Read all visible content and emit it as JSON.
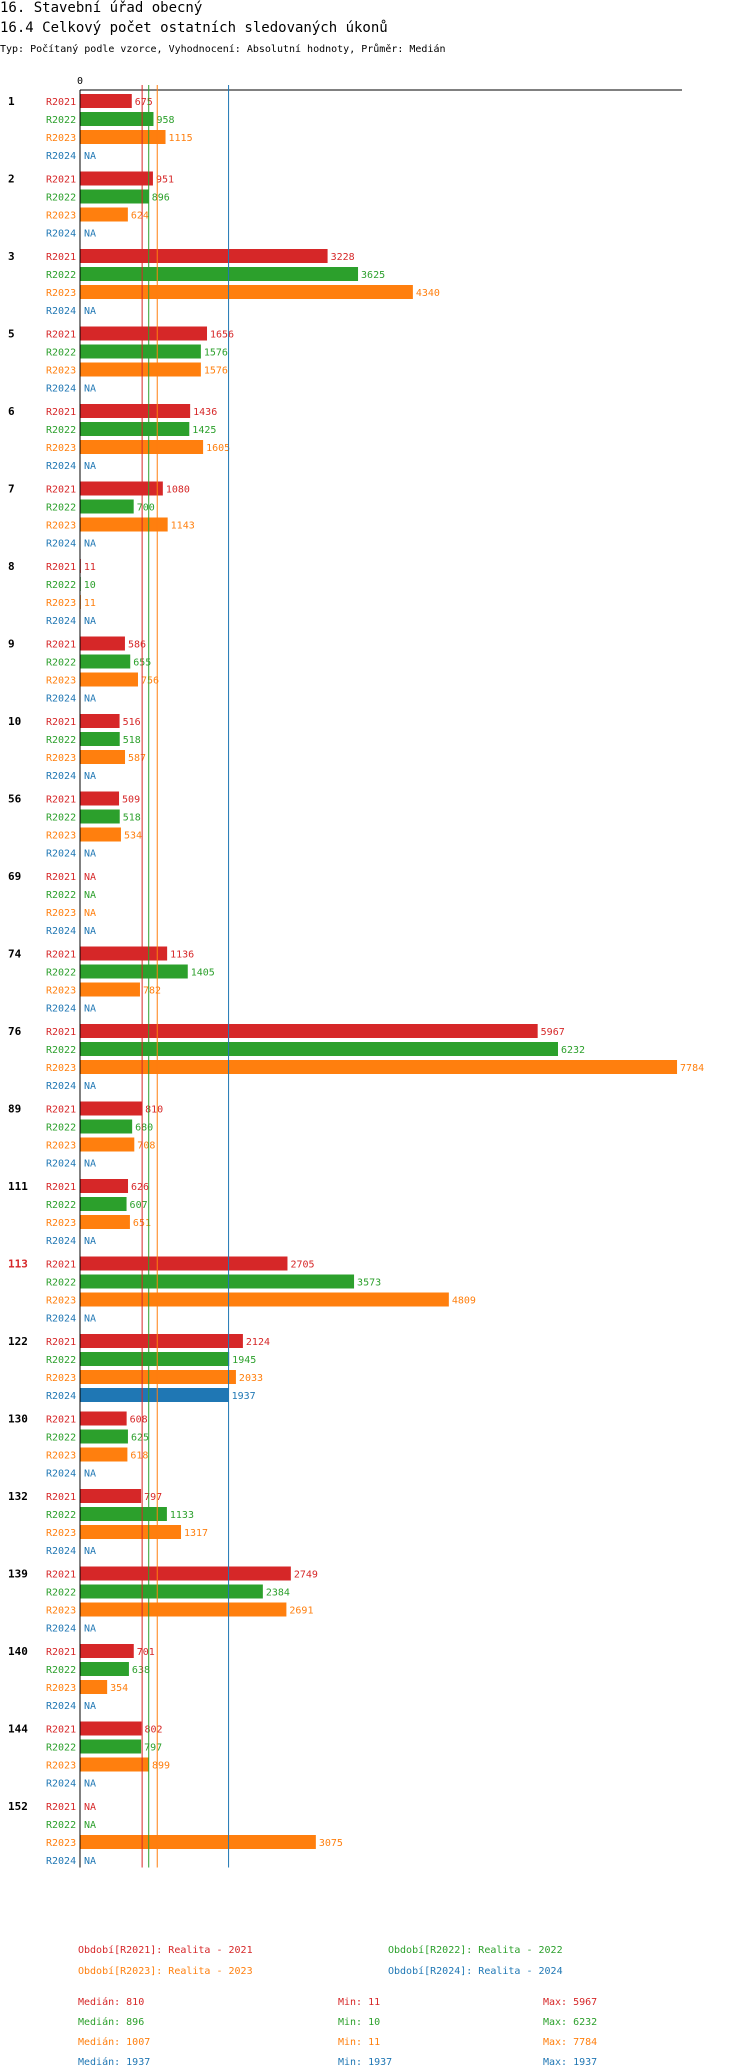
{
  "header": {
    "title": "16. Stavební úřad obecný",
    "subtitle": "16.4 Celkový počet ostatních sledovaných úkonů",
    "meta": "Typ: Počítaný podle vzorce, Vyhodnocení: Absolutní hodnoty, Průměr: Medián"
  },
  "chart_data": {
    "type": "bar",
    "orientation": "horizontal",
    "title": "16.4 Celkový počet ostatních sledovaných úkonů",
    "axis_label": "0",
    "xlim": [
      0,
      7784
    ],
    "missing_label": "NA",
    "highlighted_category": "113",
    "categories": [
      "1",
      "2",
      "3",
      "5",
      "6",
      "7",
      "8",
      "9",
      "10",
      "56",
      "69",
      "74",
      "76",
      "89",
      "111",
      "113",
      "122",
      "130",
      "132",
      "139",
      "140",
      "144",
      "152"
    ],
    "series": [
      {
        "name": "R2021",
        "color": "#d62728",
        "values": [
          675,
          951,
          3228,
          1656,
          1436,
          1080,
          11,
          586,
          516,
          509,
          null,
          1136,
          5967,
          810,
          626,
          2705,
          2124,
          608,
          797,
          2749,
          701,
          802,
          null
        ]
      },
      {
        "name": "R2022",
        "color": "#2ca02c",
        "values": [
          958,
          896,
          3625,
          1576,
          1425,
          700,
          10,
          655,
          518,
          518,
          null,
          1405,
          6232,
          680,
          607,
          3573,
          1945,
          625,
          1133,
          2384,
          638,
          797,
          null
        ]
      },
      {
        "name": "R2023",
        "color": "#ff7f0e",
        "values": [
          1115,
          624,
          4340,
          1576,
          1605,
          1143,
          11,
          756,
          587,
          534,
          null,
          782,
          7784,
          708,
          651,
          4809,
          2033,
          618,
          1317,
          2691,
          354,
          899,
          3075
        ]
      },
      {
        "name": "R2024",
        "color": "#1f77b4",
        "values": [
          null,
          null,
          null,
          null,
          null,
          null,
          null,
          null,
          null,
          null,
          null,
          null,
          null,
          null,
          null,
          null,
          1937,
          null,
          null,
          null,
          null,
          null,
          null
        ]
      }
    ],
    "reference_lines": [
      {
        "series": "R2021",
        "value": 810
      },
      {
        "series": "R2022",
        "value": 896
      },
      {
        "series": "R2023",
        "value": 1007
      },
      {
        "series": "R2024",
        "value": 1937
      }
    ]
  },
  "legend": [
    {
      "text": "Období[R2021]: Realita - 2021",
      "color": "#d62728"
    },
    {
      "text": "Období[R2022]: Realita - 2022",
      "color": "#2ca02c"
    },
    {
      "text": "Období[R2023]: Realita - 2023",
      "color": "#ff7f0e"
    },
    {
      "text": "Období[R2024]: Realita - 2024",
      "color": "#1f77b4"
    }
  ],
  "stats": [
    {
      "median": "Medián: 810",
      "min": "Min: 11",
      "max": "Max: 5967",
      "color": "#d62728"
    },
    {
      "median": "Medián: 896",
      "min": "Min: 10",
      "max": "Max: 6232",
      "color": "#2ca02c"
    },
    {
      "median": "Medián: 1007",
      "min": "Min: 11",
      "max": "Max: 7784",
      "color": "#ff7f0e"
    },
    {
      "median": "Medián: 1937",
      "min": "Min: 1937",
      "max": "Max: 1937",
      "color": "#1f77b4"
    }
  ]
}
